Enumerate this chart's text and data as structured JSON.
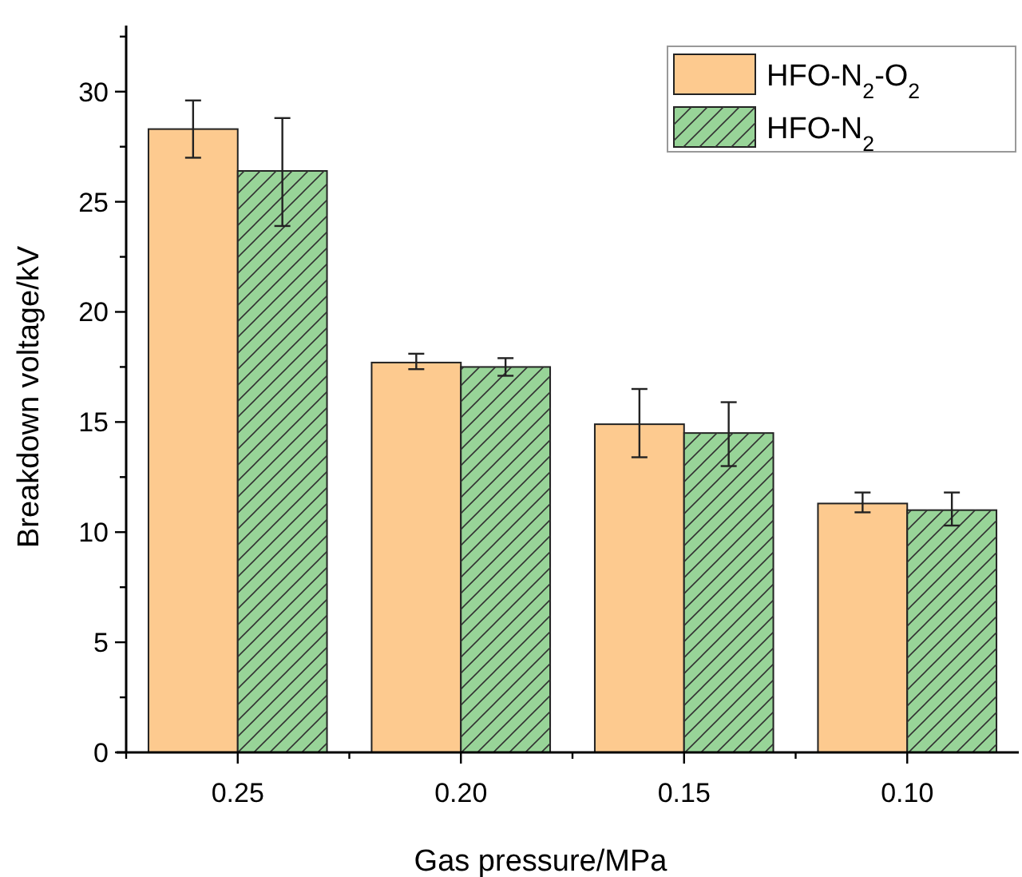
{
  "chart_data": {
    "type": "bar",
    "xlabel": "Gas pressure/MPa",
    "ylabel": "Breakdown voltage/kV",
    "categories": [
      "0.25",
      "0.20",
      "0.15",
      "0.10"
    ],
    "series": [
      {
        "name": "HFO-N$_{2}$-O$_{2}$",
        "color": "#fdca8f",
        "values": [
          28.3,
          17.7,
          14.9,
          11.3
        ],
        "errors": [
          [
            27.0,
            29.6
          ],
          [
            17.4,
            18.1
          ],
          [
            13.4,
            16.5
          ],
          [
            10.9,
            11.8
          ]
        ]
      },
      {
        "name": "HFO-N$_{2}$",
        "color": "#98d498",
        "values": [
          26.4,
          17.5,
          14.5,
          11.0
        ],
        "errors": [
          [
            23.9,
            28.8
          ],
          [
            17.1,
            17.9
          ],
          [
            13.0,
            15.9
          ],
          [
            10.3,
            11.8
          ]
        ]
      }
    ],
    "ylim": [
      0,
      33
    ],
    "yticks": [
      0,
      {
        "value": 2.5,
        "label": null
      },
      5,
      {
        "value": 7.5,
        "label": null
      },
      10,
      {
        "value": 12.5,
        "label": null
      },
      15,
      {
        "value": 17.5,
        "label": null
      },
      20,
      {
        "value": 22.5,
        "label": null
      },
      25,
      {
        "value": 27.5,
        "label": null
      },
      30,
      {
        "value": 32.5,
        "label": null
      }
    ],
    "grid": false,
    "legend": "top right"
  }
}
